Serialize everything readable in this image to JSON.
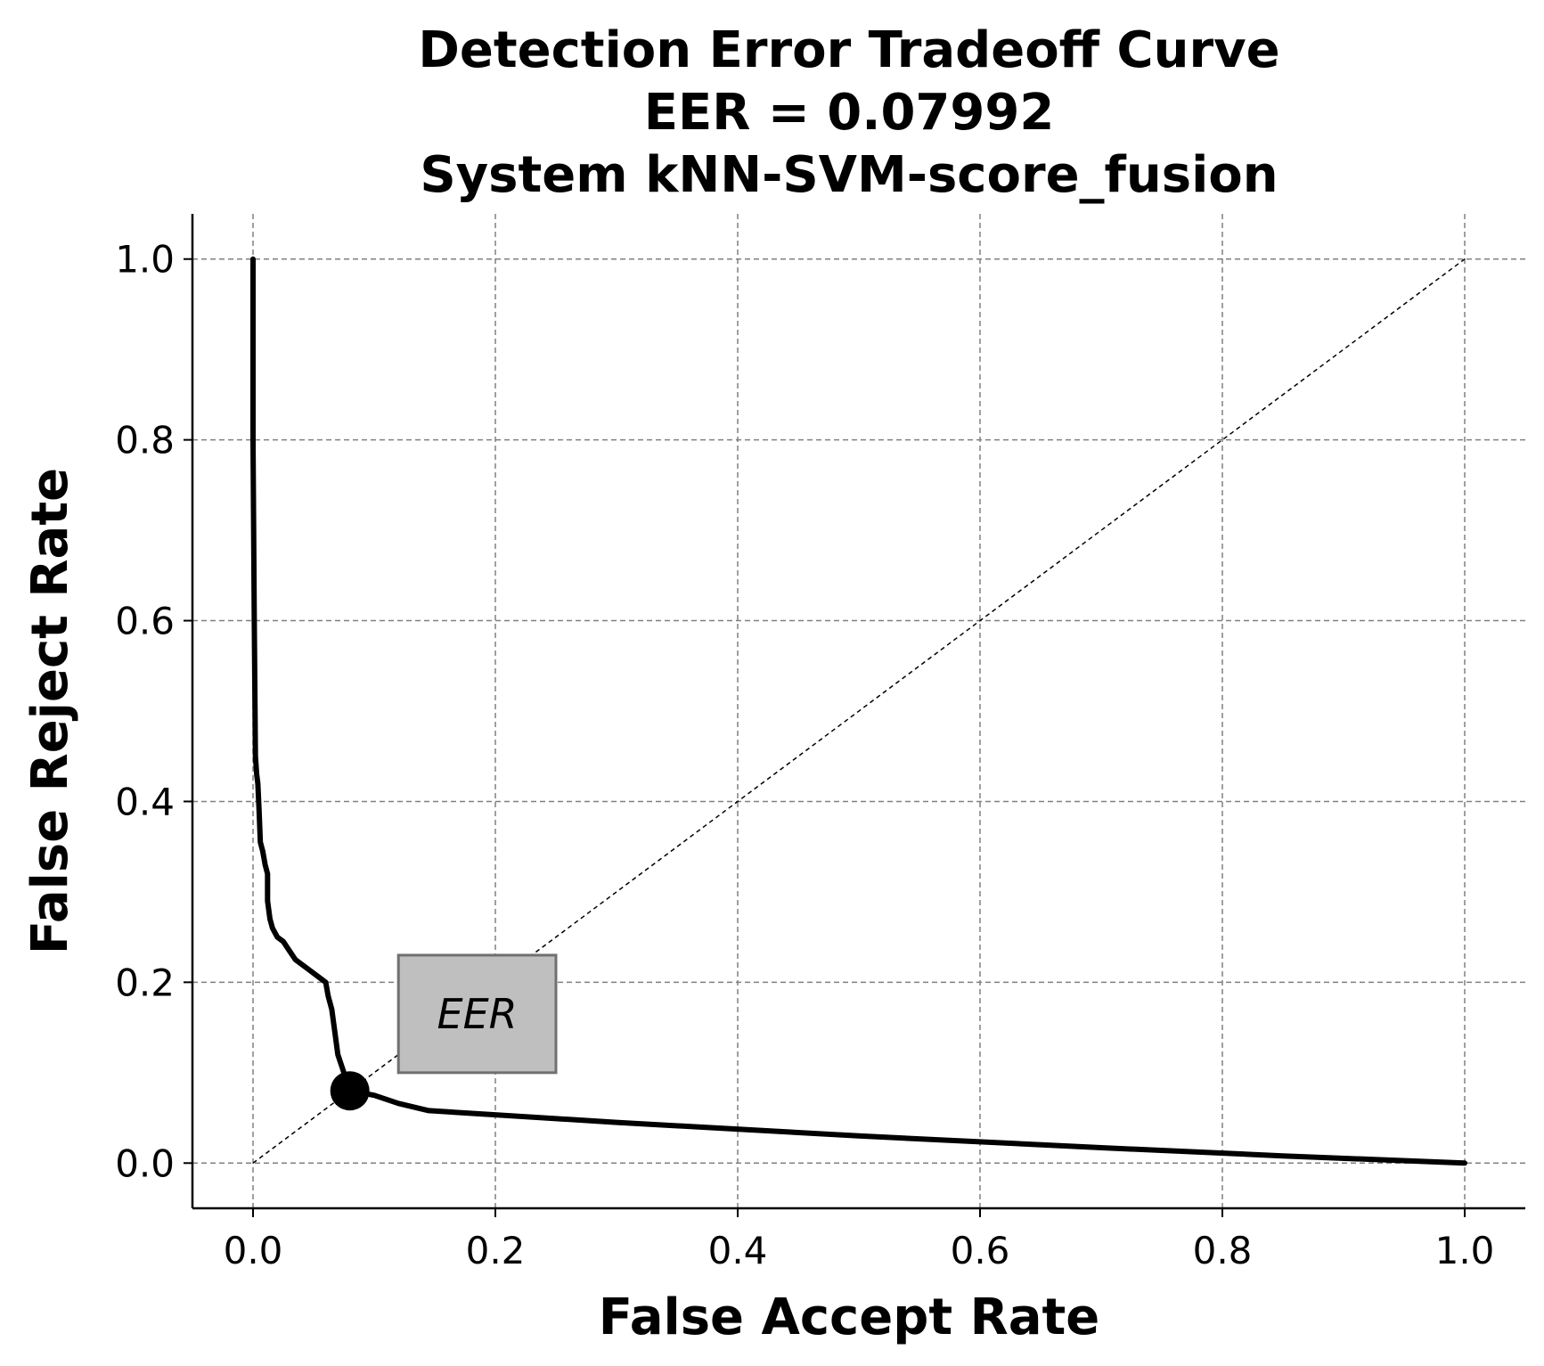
{
  "chart_data": {
    "type": "line",
    "title_lines": [
      "Detection Error Tradeoff Curve",
      "EER = 0.07992",
      "System kNN-SVM-score_fusion"
    ],
    "xlabel": "False Accept Rate",
    "ylabel": "False Reject Rate",
    "xlim": [
      -0.05,
      1.05
    ],
    "ylim": [
      -0.05,
      1.05
    ],
    "xticks": [
      0.0,
      0.2,
      0.4,
      0.6,
      0.8,
      1.0
    ],
    "yticks": [
      0.0,
      0.2,
      0.4,
      0.6,
      0.8,
      1.0
    ],
    "xtick_labels": [
      "0.0",
      "0.2",
      "0.4",
      "0.6",
      "0.8",
      "1.0"
    ],
    "ytick_labels": [
      "0.0",
      "0.2",
      "0.4",
      "0.6",
      "0.8",
      "1.0"
    ],
    "grid": true,
    "series": [
      {
        "x": [
          0.0,
          0.0,
          0.001,
          0.002,
          0.003,
          0.004,
          0.005,
          0.006,
          0.008,
          0.01,
          0.012,
          0.012,
          0.014,
          0.016,
          0.02,
          0.025,
          0.03,
          0.035,
          0.045,
          0.055,
          0.06,
          0.062,
          0.065,
          0.068,
          0.07,
          0.075,
          0.08,
          0.1,
          0.12,
          0.145,
          0.3,
          0.5,
          0.7,
          0.85,
          1.0
        ],
        "y": [
          1.0,
          0.8,
          0.6,
          0.45,
          0.43,
          0.42,
          0.39,
          0.355,
          0.345,
          0.33,
          0.32,
          0.29,
          0.27,
          0.26,
          0.25,
          0.245,
          0.235,
          0.225,
          0.215,
          0.205,
          0.2,
          0.185,
          0.17,
          0.14,
          0.12,
          0.1,
          0.08,
          0.075,
          0.066,
          0.058,
          0.045,
          0.03,
          0.017,
          0.008,
          0.0
        ],
        "color": "#000000"
      }
    ],
    "diagonal": {
      "x": [
        0.0,
        1.0
      ],
      "y": [
        0.0,
        1.0
      ],
      "style": "dashed"
    },
    "eer_point": {
      "x": 0.07992,
      "y": 0.07992
    },
    "annotation": {
      "text": "EER",
      "x": [
        0.12,
        0.25
      ],
      "y": [
        0.1,
        0.23
      ],
      "fill": "#bfbfbf",
      "stroke": "#707070"
    }
  }
}
